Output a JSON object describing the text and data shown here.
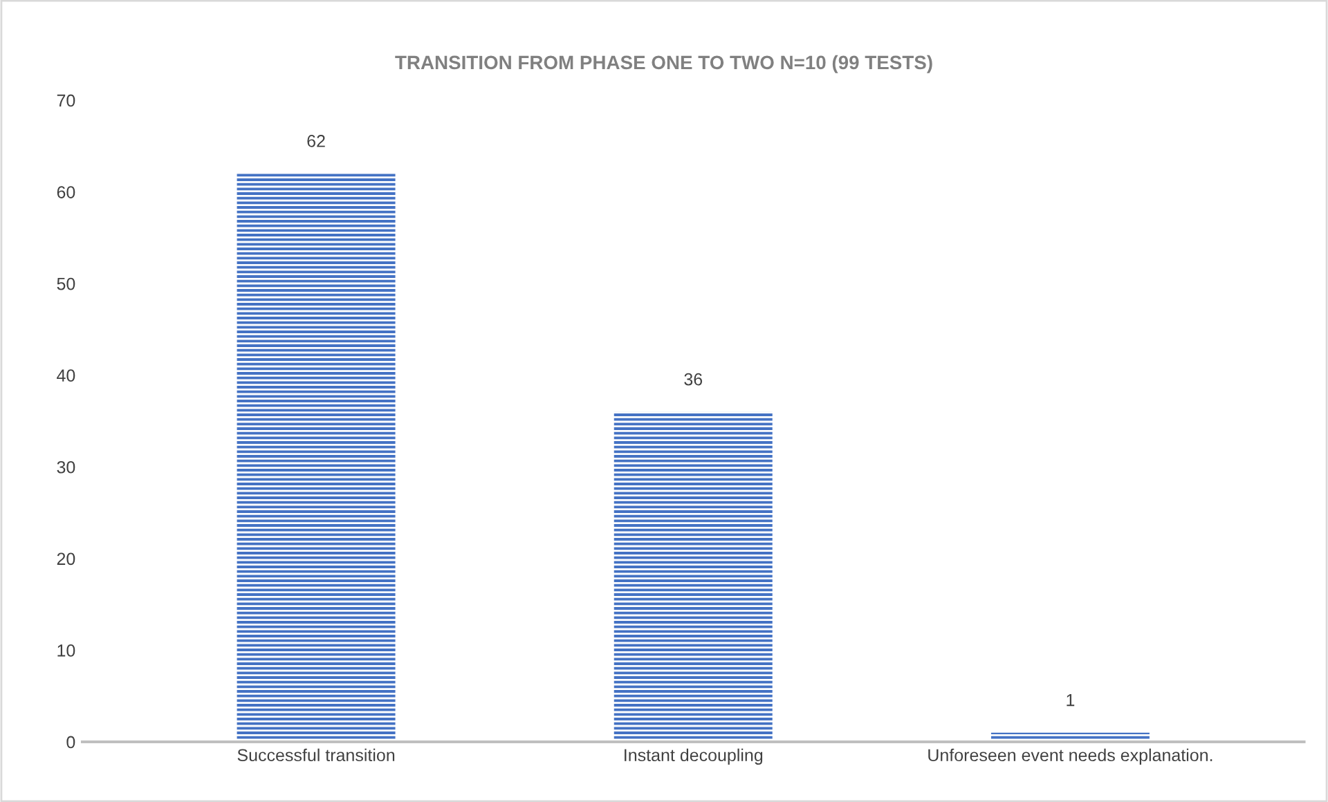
{
  "chart_data": {
    "type": "bar",
    "title": "TRANSITION FROM PHASE ONE TO TWO N=10 (99 TESTS)",
    "categories": [
      "Successful transition",
      "Instant decoupling",
      "Unforeseen event needs explanation."
    ],
    "values": [
      62,
      36,
      1
    ],
    "color": "#4472c4",
    "ylim": [
      0,
      70
    ],
    "yticks": [
      0,
      10,
      20,
      30,
      40,
      50,
      60,
      70
    ],
    "grid": false,
    "data_labels": true
  }
}
